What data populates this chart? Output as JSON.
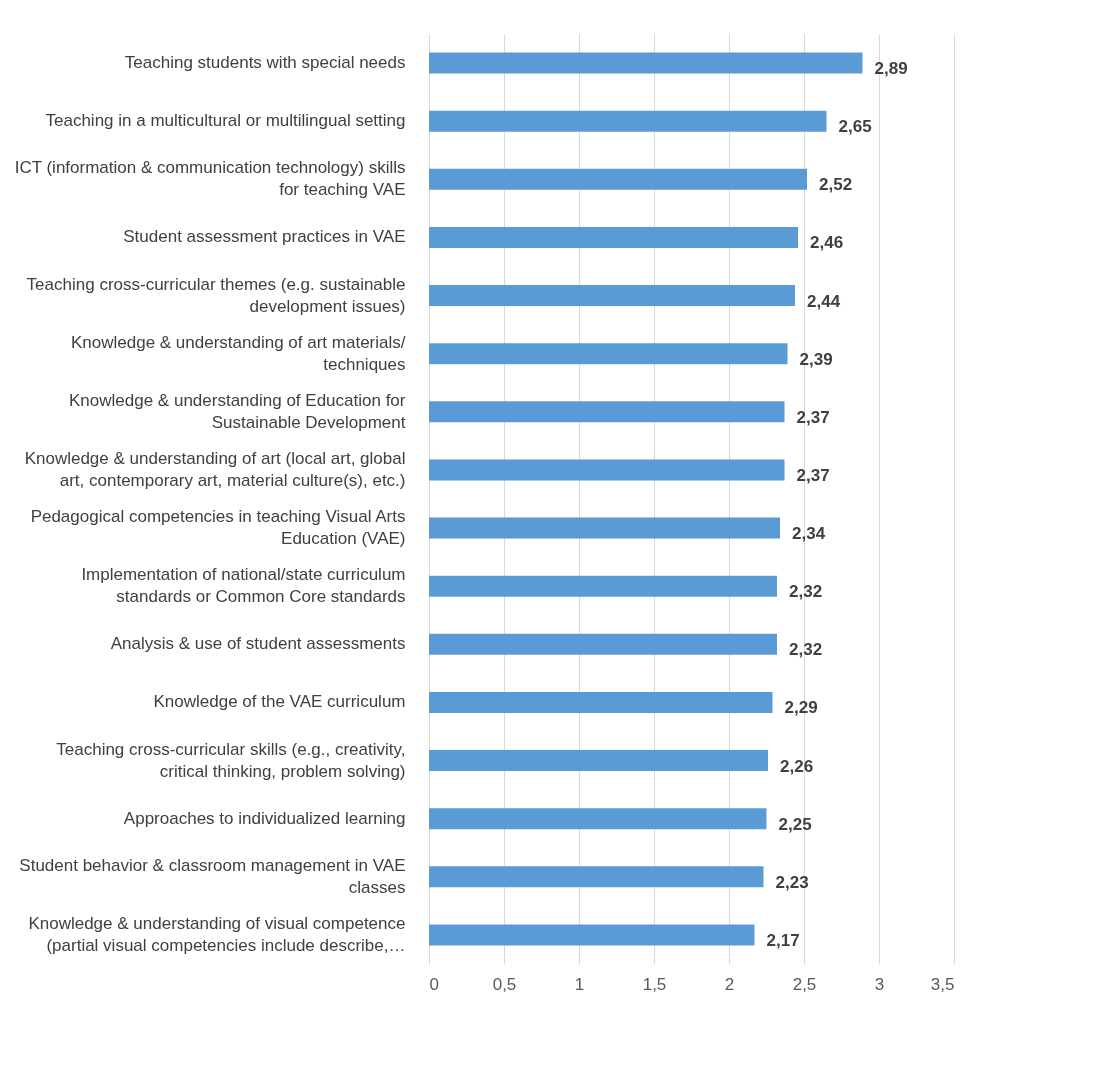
{
  "chart_data": {
    "type": "bar",
    "orientation": "horizontal",
    "categories": [
      "Teaching students with special needs",
      "Teaching in a multicultural or multilingual setting",
      "ICT (information & communication technology) skills for teaching VAE",
      "Student assessment practices in VAE",
      "Teaching cross-curricular themes (e.g. sustainable development issues)",
      "Knowledge & understanding of art materials/ techniques",
      "Knowledge & understanding of Education for Sustainable Development",
      "Knowledge & understanding of art (local art, global art, contemporary art, material culture(s), etc.)",
      "Pedagogical competencies in teaching Visual Arts Education (VAE)",
      "Implementation of national/state curriculum standards or Common Core standards",
      "Analysis & use of student assessments",
      "Knowledge of the VAE curriculum",
      "Teaching cross-curricular skills (e.g., creativity, critical thinking, problem solving)",
      "Approaches to individualized learning",
      "Student behavior & classroom management in VAE classes",
      "Knowledge & understanding of visual competence (partial visual competencies include describe,…"
    ],
    "values": [
      2.89,
      2.65,
      2.52,
      2.46,
      2.44,
      2.39,
      2.37,
      2.37,
      2.34,
      2.32,
      2.32,
      2.29,
      2.26,
      2.25,
      2.23,
      2.17
    ],
    "value_labels": [
      "2,89",
      "2,65",
      "2,52",
      "2,46",
      "2,44",
      "2,39",
      "2,37",
      "2,37",
      "2,34",
      "2,32",
      "2,32",
      "2,29",
      "2,26",
      "2,25",
      "2,23",
      "2,17"
    ],
    "color": "#5b9bd5",
    "xlim": [
      0,
      3.5
    ],
    "xticks": [
      0,
      {
        "value": 0.5,
        "label": "0,5"
      },
      1,
      {
        "value": 1.5,
        "label": "1,5"
      },
      2,
      {
        "value": 2.5,
        "label": "2,5"
      },
      3,
      {
        "value": 3.5,
        "label": "3,5"
      }
    ],
    "grid": "x"
  }
}
